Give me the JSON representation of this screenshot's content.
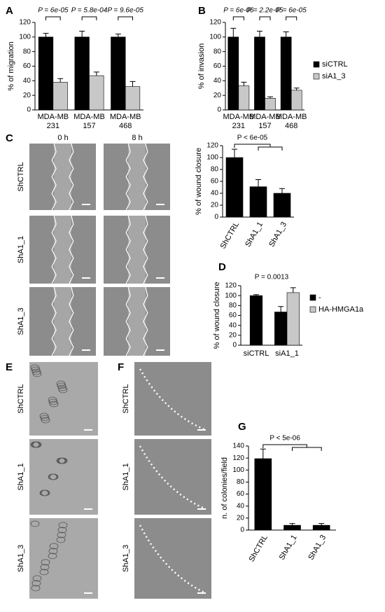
{
  "panels": [
    "A",
    "B",
    "C",
    "D",
    "E",
    "F",
    "G"
  ],
  "image_panels": {
    "C": {
      "columns": [
        "0 h",
        "8 h"
      ],
      "rows": [
        "ShCTRL",
        "ShA1_1",
        "ShA1_3"
      ]
    },
    "E": {
      "rows": [
        "ShCTRL",
        "ShA1_1",
        "ShA1_3"
      ]
    },
    "F": {
      "rows": [
        "ShCTRL",
        "ShA1_1",
        "ShA1_3"
      ]
    }
  },
  "chart_data": [
    {
      "type": "bar",
      "ylabel": "% of migration",
      "categories": [
        [
          "MDA-MB",
          "231"
        ],
        [
          "MDA-MB",
          "157"
        ],
        [
          "MDA-MB",
          "468"
        ]
      ],
      "series": [
        {
          "color": "#000000",
          "values": [
            100,
            100,
            100
          ],
          "errors": [
            5,
            8,
            4
          ]
        },
        {
          "color": "#c8c8c8",
          "values": [
            38,
            47,
            32
          ],
          "errors": [
            5,
            5,
            7
          ]
        }
      ],
      "ylim": [
        0,
        120
      ],
      "yticks": [
        0,
        20,
        40,
        60,
        80,
        100,
        120
      ],
      "annotations": [
        "P = 6e-05",
        "P = 5.8e-04",
        "P = 9.6e-05"
      ]
    },
    {
      "type": "bar",
      "ylabel": "% of invasion",
      "categories": [
        [
          "MDA-MB",
          "231"
        ],
        [
          "MDA-MB",
          "157"
        ],
        [
          "MDA-MB",
          "468"
        ]
      ],
      "series": [
        {
          "name": "siCTRL",
          "color": "#000000",
          "values": [
            100,
            100,
            100
          ],
          "errors": [
            12,
            8,
            7
          ]
        },
        {
          "name": "siA1_3",
          "color": "#c8c8c8",
          "values": [
            33,
            16,
            27
          ],
          "errors": [
            5,
            2,
            3
          ]
        }
      ],
      "ylim": [
        0,
        120
      ],
      "yticks": [
        0,
        20,
        40,
        60,
        80,
        100,
        120
      ],
      "legend": "right",
      "annotations": [
        "P = 6e-06",
        "P = 2.2e-05",
        "P = 6e-05"
      ]
    },
    {
      "type": "bar",
      "ylabel": "% of wound closure",
      "categories": [
        "ShCTRL",
        "ShA1_1",
        "ShA1_3"
      ],
      "values": [
        100,
        51,
        40
      ],
      "errors": [
        14,
        12,
        8
      ],
      "color": "#000000",
      "ylim": [
        0,
        120
      ],
      "yticks": [
        0,
        20,
        40,
        60,
        80,
        100,
        120
      ],
      "rotate_labels": true,
      "annotations": [
        "P < 6e-05"
      ]
    },
    {
      "type": "bar",
      "ylabel": "% of wound closure",
      "categories": [
        "siCTRL",
        "siA1_1"
      ],
      "series": [
        {
          "name": "-",
          "color": "#000000",
          "values": [
            100,
            67
          ],
          "errors": [
            2,
            11
          ]
        },
        {
          "name": "HA-HMGA1a",
          "color": "#c8c8c8",
          "values": [
            null,
            106
          ],
          "errors": [
            null,
            10
          ]
        }
      ],
      "ylim": [
        0,
        120
      ],
      "yticks": [
        0,
        20,
        40,
        60,
        80,
        100,
        120
      ],
      "legend": "right",
      "annotations": [
        "P = 0.0013"
      ]
    },
    {
      "type": "bar",
      "ylabel": "n. of colonies/field",
      "categories": [
        "ShCTRL",
        "ShA1_1",
        "ShA1_3"
      ],
      "values": [
        119,
        8,
        8
      ],
      "errors": [
        16,
        3,
        3
      ],
      "color": "#000000",
      "ylim": [
        0,
        140
      ],
      "yticks": [
        0,
        20,
        40,
        60,
        80,
        100,
        120,
        140
      ],
      "rotate_labels": true,
      "annotations": [
        "P < 5e-06"
      ]
    }
  ]
}
